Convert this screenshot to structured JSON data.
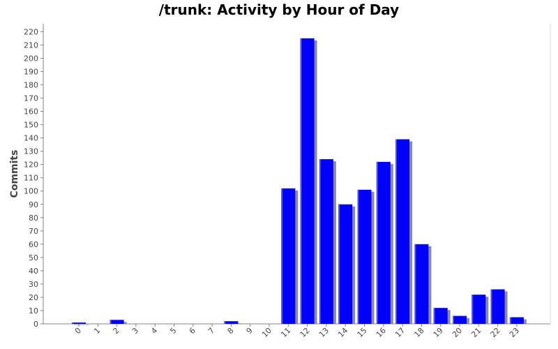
{
  "chart_data": {
    "type": "bar",
    "title": "/trunk: Activity by Hour of Day",
    "xlabel": "",
    "ylabel": "Commits",
    "categories": [
      "0",
      "1",
      "2",
      "3",
      "4",
      "5",
      "6",
      "7",
      "8",
      "9",
      "10",
      "11",
      "12",
      "13",
      "14",
      "15",
      "16",
      "17",
      "18",
      "19",
      "20",
      "21",
      "22",
      "23"
    ],
    "values": [
      1,
      0,
      3,
      0,
      0,
      0,
      0,
      0,
      2,
      0,
      0,
      102,
      215,
      124,
      90,
      101,
      122,
      139,
      60,
      12,
      6,
      22,
      26,
      5
    ],
    "ylim": [
      0,
      226
    ],
    "yticks": [
      0,
      10,
      20,
      30,
      40,
      50,
      60,
      70,
      80,
      90,
      100,
      110,
      120,
      130,
      140,
      150,
      160,
      170,
      180,
      190,
      200,
      210,
      220
    ],
    "grid": false,
    "colors": {
      "bar": "#0000ff",
      "bar_highlight": "#4d4dff",
      "shadow": "#8c8c8c",
      "axis": "#808080"
    }
  }
}
